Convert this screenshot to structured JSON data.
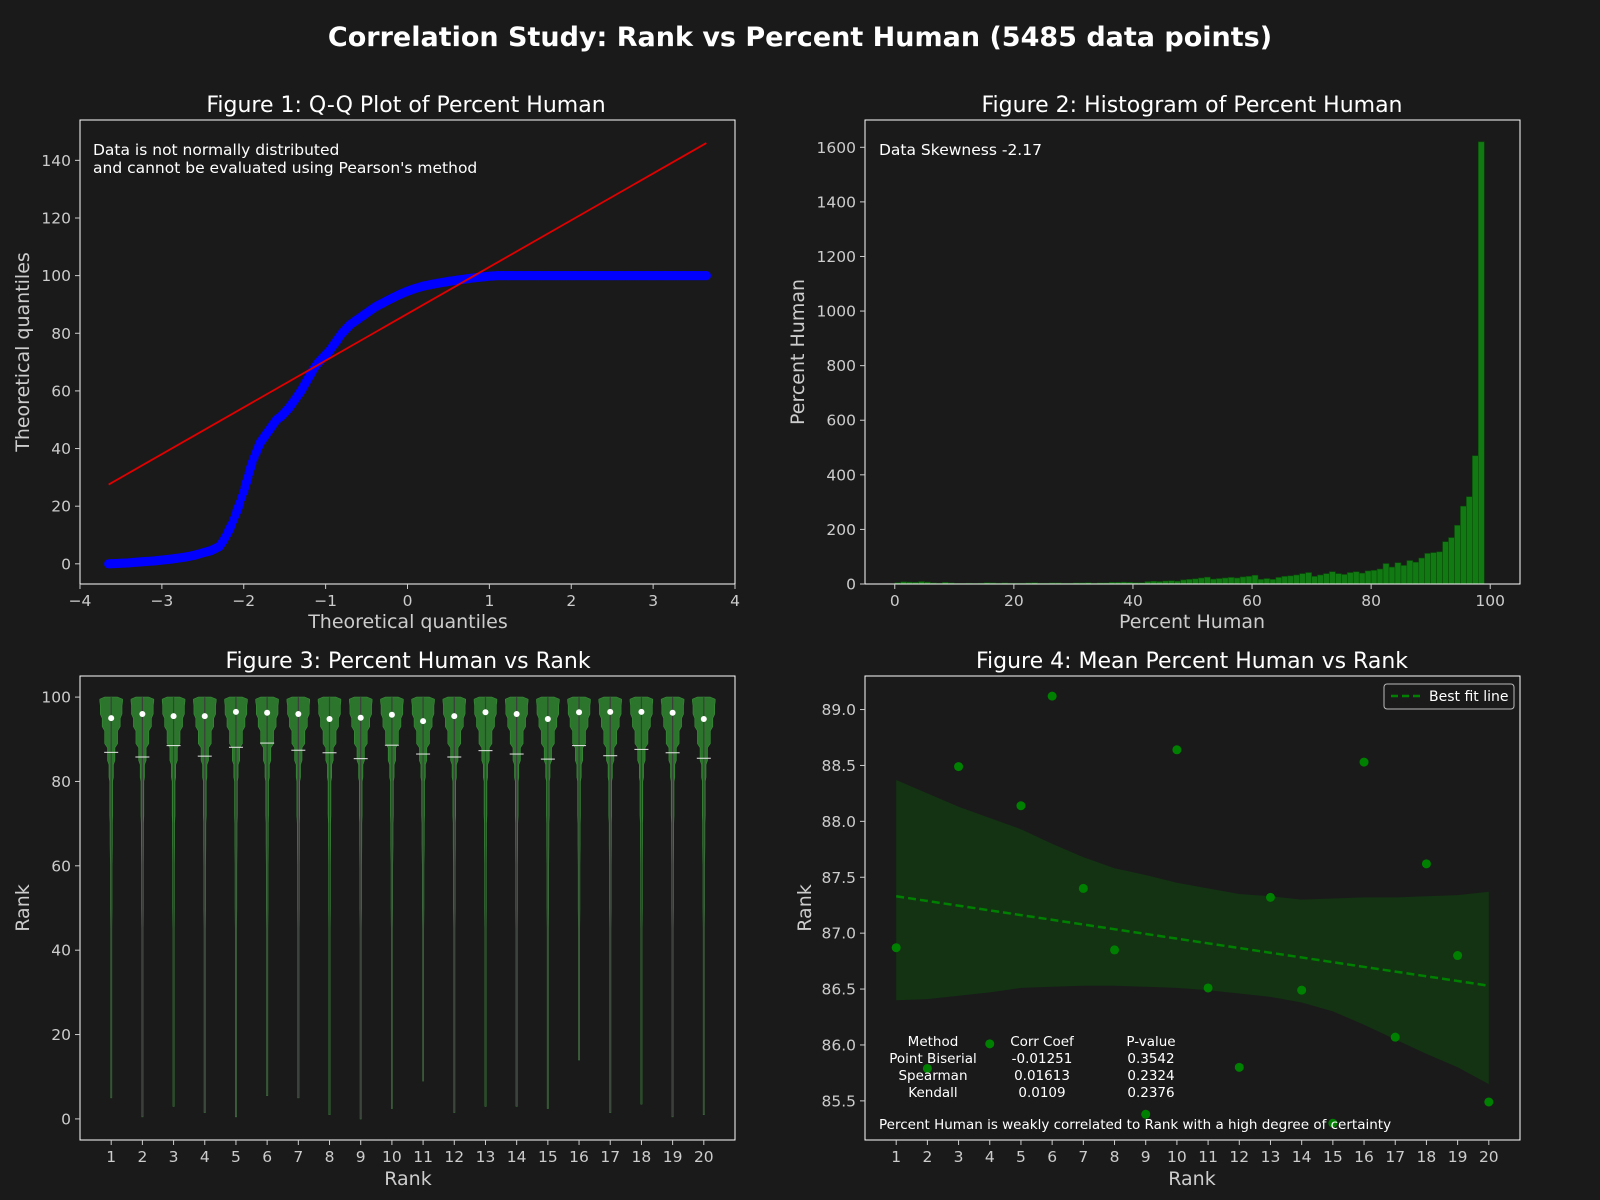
{
  "suptitle": "Correlation Study: Rank vs Percent Human (5485 data points)",
  "colors": {
    "background": "#1a1a1a",
    "text": "#ffffff",
    "tick": "#cccccc",
    "qq_points": "#0000ff",
    "qq_line": "#e00000",
    "green": "#008000",
    "violin_fill": "#2d7a2d",
    "band": "#133313"
  },
  "chart_data": [
    {
      "type": "scatter",
      "title": "Figure 1: Q-Q Plot of Percent Human",
      "xlabel": "Theoretical quantiles",
      "ylabel": "Theoretical quantiles",
      "annotation": [
        "Data is not normally distributed",
        "and cannot be evaluated using Pearson's method"
      ],
      "xlim": [
        -4,
        4
      ],
      "ylim": [
        -7,
        154
      ],
      "xticks": [
        -4,
        -3,
        -2,
        -1,
        0,
        1,
        2,
        3,
        4
      ],
      "yticks": [
        0,
        20,
        40,
        60,
        80,
        100,
        120,
        140
      ],
      "xtick_labels": [
        "−4",
        "−3",
        "−2",
        "−1",
        "0",
        "1",
        "2",
        "3",
        "4"
      ],
      "ytick_labels": [
        "0",
        "20",
        "40",
        "60",
        "80",
        "100",
        "120",
        "140"
      ],
      "fit_line": [
        [
          -3.65,
          27.5
        ],
        [
          3.65,
          146
        ]
      ],
      "points": [
        [
          -3.65,
          0
        ],
        [
          -3.42,
          0.3
        ],
        [
          -3.3,
          0.6
        ],
        [
          -3.2,
          0.8
        ],
        [
          -3.1,
          1.0
        ],
        [
          -3.0,
          1.3
        ],
        [
          -2.9,
          1.6
        ],
        [
          -2.8,
          2.0
        ],
        [
          -2.7,
          2.4
        ],
        [
          -2.6,
          3.0
        ],
        [
          -2.5,
          3.8
        ],
        [
          -2.4,
          4.6
        ],
        [
          -2.3,
          6.0
        ],
        [
          -2.25,
          8.0
        ],
        [
          -2.2,
          10.5
        ],
        [
          -2.15,
          13.5
        ],
        [
          -2.1,
          17.0
        ],
        [
          -2.05,
          21.0
        ],
        [
          -2.0,
          25.0
        ],
        [
          -1.95,
          30.0
        ],
        [
          -1.9,
          35.0
        ],
        [
          -1.85,
          38.5
        ],
        [
          -1.8,
          42.0
        ],
        [
          -1.75,
          44.0
        ],
        [
          -1.7,
          46.0
        ],
        [
          -1.65,
          48.0
        ],
        [
          -1.6,
          50.0
        ],
        [
          -1.55,
          51.0
        ],
        [
          -1.5,
          52.5
        ],
        [
          -1.45,
          54.0
        ],
        [
          -1.4,
          56.0
        ],
        [
          -1.35,
          58.0
        ],
        [
          -1.3,
          60.0
        ],
        [
          -1.25,
          62.5
        ],
        [
          -1.2,
          65.0
        ],
        [
          -1.15,
          67.5
        ],
        [
          -1.1,
          69.5
        ],
        [
          -1.05,
          71.0
        ],
        [
          -1.0,
          72.5
        ],
        [
          -0.95,
          74.0
        ],
        [
          -0.9,
          76.0
        ],
        [
          -0.85,
          78.0
        ],
        [
          -0.8,
          80.0
        ],
        [
          -0.75,
          81.5
        ],
        [
          -0.7,
          83.0
        ],
        [
          -0.65,
          84.0
        ],
        [
          -0.6,
          85.0
        ],
        [
          -0.55,
          86.0
        ],
        [
          -0.5,
          87.0
        ],
        [
          -0.45,
          88.0
        ],
        [
          -0.4,
          89.0
        ],
        [
          -0.35,
          89.8
        ],
        [
          -0.3,
          90.5
        ],
        [
          -0.25,
          91.3
        ],
        [
          -0.2,
          92.0
        ],
        [
          -0.15,
          92.7
        ],
        [
          -0.1,
          93.4
        ],
        [
          -0.05,
          94.0
        ],
        [
          0.0,
          94.6
        ],
        [
          0.05,
          95.1
        ],
        [
          0.1,
          95.6
        ],
        [
          0.15,
          96.0
        ],
        [
          0.2,
          96.4
        ],
        [
          0.3,
          97.0
        ],
        [
          0.4,
          97.5
        ],
        [
          0.5,
          98.0
        ],
        [
          0.6,
          98.4
        ],
        [
          0.7,
          98.8
        ],
        [
          0.8,
          99.2
        ],
        [
          0.9,
          99.5
        ],
        [
          1.0,
          99.8
        ],
        [
          1.1,
          100
        ],
        [
          1.3,
          100
        ],
        [
          1.5,
          100
        ],
        [
          1.7,
          100
        ],
        [
          1.9,
          100
        ],
        [
          2.1,
          100
        ],
        [
          2.3,
          100
        ],
        [
          2.5,
          100
        ],
        [
          2.7,
          100
        ],
        [
          2.9,
          100
        ],
        [
          3.1,
          100
        ],
        [
          3.3,
          100
        ],
        [
          3.44,
          100
        ],
        [
          3.65,
          100
        ]
      ]
    },
    {
      "type": "bar",
      "title": "Figure 2: Histogram of Percent Human",
      "xlabel": "Percent Human",
      "ylabel": "Percent Human",
      "annotation": "Data Skewness -2.17",
      "xlim": [
        -5,
        105
      ],
      "ylim": [
        0,
        1700
      ],
      "xticks": [
        0,
        20,
        40,
        60,
        80,
        100
      ],
      "yticks": [
        0,
        200,
        400,
        600,
        800,
        1000,
        1200,
        1400,
        1600
      ],
      "xtick_labels": [
        "0",
        "20",
        "40",
        "60",
        "80",
        "100"
      ],
      "ytick_labels": [
        "0",
        "200",
        "400",
        "600",
        "800",
        "1000",
        "1200",
        "1400",
        "1600"
      ],
      "bin_width": 1,
      "values": [
        5,
        8,
        7,
        6,
        9,
        7,
        4,
        3,
        6,
        4,
        2,
        2,
        3,
        2,
        3,
        5,
        4,
        3,
        4,
        3,
        3,
        3,
        4,
        5,
        3,
        3,
        4,
        4,
        3,
        3,
        4,
        4,
        5,
        3,
        4,
        4,
        6,
        6,
        7,
        6,
        5,
        5,
        9,
        10,
        9,
        11,
        12,
        10,
        15,
        17,
        19,
        22,
        25,
        18,
        20,
        22,
        24,
        22,
        26,
        28,
        32,
        17,
        20,
        17,
        24,
        28,
        30,
        33,
        38,
        42,
        28,
        33,
        38,
        45,
        38,
        35,
        42,
        45,
        40,
        48,
        50,
        55,
        75,
        62,
        78,
        68,
        86,
        80,
        95,
        112,
        115,
        118,
        155,
        170,
        215,
        285,
        320,
        470,
        1620
      ]
    },
    {
      "type": "violin",
      "title": "Figure 3: Percent Human vs Rank",
      "xlabel": "Rank",
      "ylabel": "Rank",
      "xlim": [
        0,
        21
      ],
      "ylim": [
        -5,
        105
      ],
      "yticks": [
        0,
        20,
        40,
        60,
        80,
        100
      ],
      "ytick_labels": [
        "0",
        "20",
        "40",
        "60",
        "80",
        "100"
      ],
      "categories": [
        "1",
        "2",
        "3",
        "4",
        "5",
        "6",
        "7",
        "8",
        "9",
        "10",
        "11",
        "12",
        "13",
        "14",
        "15",
        "16",
        "17",
        "18",
        "19",
        "20"
      ],
      "mins": [
        5,
        0.5,
        3,
        1.5,
        0.5,
        5.5,
        5,
        1,
        0,
        2.5,
        9,
        1.5,
        3,
        3,
        2.5,
        14,
        1.5,
        3.5,
        0.5,
        1
      ],
      "maxs": [
        100,
        100,
        100,
        100,
        100,
        100,
        100,
        100,
        100,
        100,
        100,
        100,
        100,
        100,
        100,
        100,
        100,
        100,
        100,
        100
      ],
      "medians": [
        95,
        96,
        95.5,
        95.5,
        96.5,
        96.3,
        96,
        94.8,
        95.1,
        95.8,
        94.3,
        95.5,
        96.4,
        96,
        94.8,
        96.4,
        96.5,
        96.5,
        96.3,
        94.8
      ],
      "means": [
        86.9,
        85.8,
        88.5,
        86.0,
        88.1,
        89.1,
        87.4,
        86.8,
        85.4,
        88.6,
        86.5,
        85.8,
        87.3,
        86.5,
        85.3,
        88.5,
        86.1,
        87.6,
        86.8,
        85.5
      ]
    },
    {
      "type": "scatter",
      "title": "Figure 4: Mean Percent Human vs Rank",
      "xlabel": "Rank",
      "ylabel": "Rank",
      "xlim": [
        0,
        21
      ],
      "ylim": [
        85.15,
        89.3
      ],
      "yticks": [
        85.5,
        86.0,
        86.5,
        87.0,
        87.5,
        88.0,
        88.5,
        89.0
      ],
      "ytick_labels": [
        "85.5",
        "86.0",
        "86.5",
        "87.0",
        "87.5",
        "88.0",
        "88.5",
        "89.0"
      ],
      "categories": [
        "1",
        "2",
        "3",
        "4",
        "5",
        "6",
        "7",
        "8",
        "9",
        "10",
        "11",
        "12",
        "13",
        "14",
        "15",
        "16",
        "17",
        "18",
        "19",
        "20"
      ],
      "x": [
        1,
        2,
        3,
        4,
        5,
        6,
        7,
        8,
        9,
        10,
        11,
        12,
        13,
        14,
        15,
        16,
        17,
        18,
        19,
        20
      ],
      "y": [
        86.87,
        85.79,
        88.49,
        86.01,
        88.14,
        89.12,
        87.4,
        86.85,
        85.38,
        88.64,
        86.51,
        85.8,
        87.32,
        86.49,
        85.3,
        88.53,
        86.07,
        87.62,
        86.8,
        85.49
      ],
      "fit_line": [
        [
          1,
          87.33
        ],
        [
          20,
          86.53
        ]
      ],
      "band": {
        "x": [
          1,
          2,
          3,
          4,
          5,
          6,
          7,
          8,
          9,
          10,
          11,
          12,
          13,
          14,
          15,
          16,
          17,
          18,
          19,
          20
        ],
        "upper": [
          88.37,
          88.25,
          88.13,
          88.03,
          87.93,
          87.8,
          87.68,
          87.58,
          87.52,
          87.45,
          87.4,
          87.35,
          87.33,
          87.3,
          87.31,
          87.32,
          87.32,
          87.33,
          87.34,
          87.37
        ],
        "lower": [
          86.4,
          86.41,
          86.44,
          86.47,
          86.51,
          86.52,
          86.53,
          86.53,
          86.52,
          86.51,
          86.49,
          86.46,
          86.43,
          86.38,
          86.3,
          86.18,
          86.05,
          85.92,
          85.8,
          85.65
        ]
      },
      "legend": {
        "label": "Best fit line",
        "location": "upper-right"
      },
      "table": {
        "header": [
          "Method",
          "Corr Coef",
          "P-value"
        ],
        "rows": [
          [
            "Point Biserial",
            "-0.01251",
            "0.3542"
          ],
          [
            "Spearman",
            "0.01613",
            "0.2324"
          ],
          [
            "Kendall",
            "0.0109",
            "0.2376"
          ]
        ]
      },
      "note": "Percent Human is weakly correlated to Rank with a high degree of certainty"
    }
  ]
}
